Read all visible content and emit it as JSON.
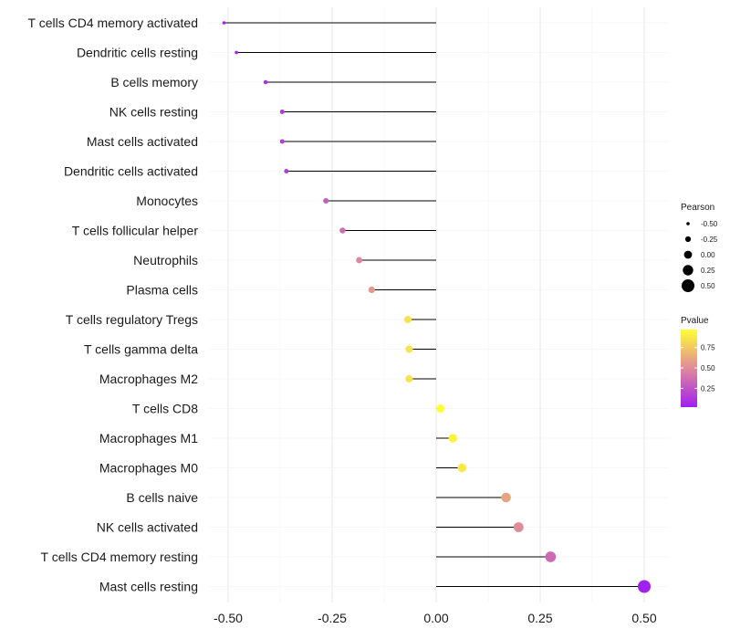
{
  "chart_data": {
    "type": "lollipop",
    "title": "",
    "xlabel": "",
    "ylabel": "",
    "xlim": [
      -0.53,
      0.53
    ],
    "x_ticks": [
      -0.5,
      -0.25,
      0.0,
      0.25,
      0.5
    ],
    "x_tick_labels": [
      "-0.50",
      "-0.25",
      "0.00",
      "0.25",
      "0.50"
    ],
    "categories": [
      "T cells CD4 memory activated",
      "Dendritic cells resting",
      "B cells memory",
      "NK cells resting",
      "Mast cells activated",
      "Dendritic cells activated",
      "Monocytes",
      "T cells follicular helper",
      "Neutrophils",
      "Plasma cells",
      "T cells regulatory  Tregs ",
      "T cells gamma delta",
      "Macrophages M2",
      "T cells CD8",
      "Macrophages M1",
      "Macrophages M0",
      "B cells naive",
      "NK cells activated",
      "T cells CD4 memory resting",
      "Mast cells resting"
    ],
    "pearson": [
      -0.51,
      -0.48,
      -0.41,
      -0.37,
      -0.37,
      -0.36,
      -0.265,
      -0.225,
      -0.185,
      -0.155,
      -0.068,
      -0.065,
      -0.065,
      0.01,
      0.04,
      0.062,
      0.168,
      0.198,
      0.275,
      0.5
    ],
    "pvalue": [
      0.03,
      0.05,
      0.1,
      0.14,
      0.14,
      0.15,
      0.3,
      0.38,
      0.48,
      0.55,
      0.85,
      0.86,
      0.86,
      0.97,
      0.92,
      0.88,
      0.6,
      0.5,
      0.35,
      0.02
    ],
    "size_legend": {
      "title": "Pearson",
      "values": [
        -0.5,
        -0.25,
        0.0,
        0.25,
        0.5
      ],
      "labels": [
        "-0.50",
        "-0.25",
        "0.00",
        "0.25",
        "0.50"
      ]
    },
    "color_legend": {
      "title": "Pvalue",
      "range": [
        0.02,
        0.97
      ],
      "ticks": [
        0.25,
        0.5,
        0.75
      ],
      "labels": [
        "0.25",
        "0.50",
        "0.75"
      ],
      "low_color": "#a020f0",
      "mid_color": "#e08a9a",
      "high_color": "#ffff33"
    },
    "grid": true
  }
}
